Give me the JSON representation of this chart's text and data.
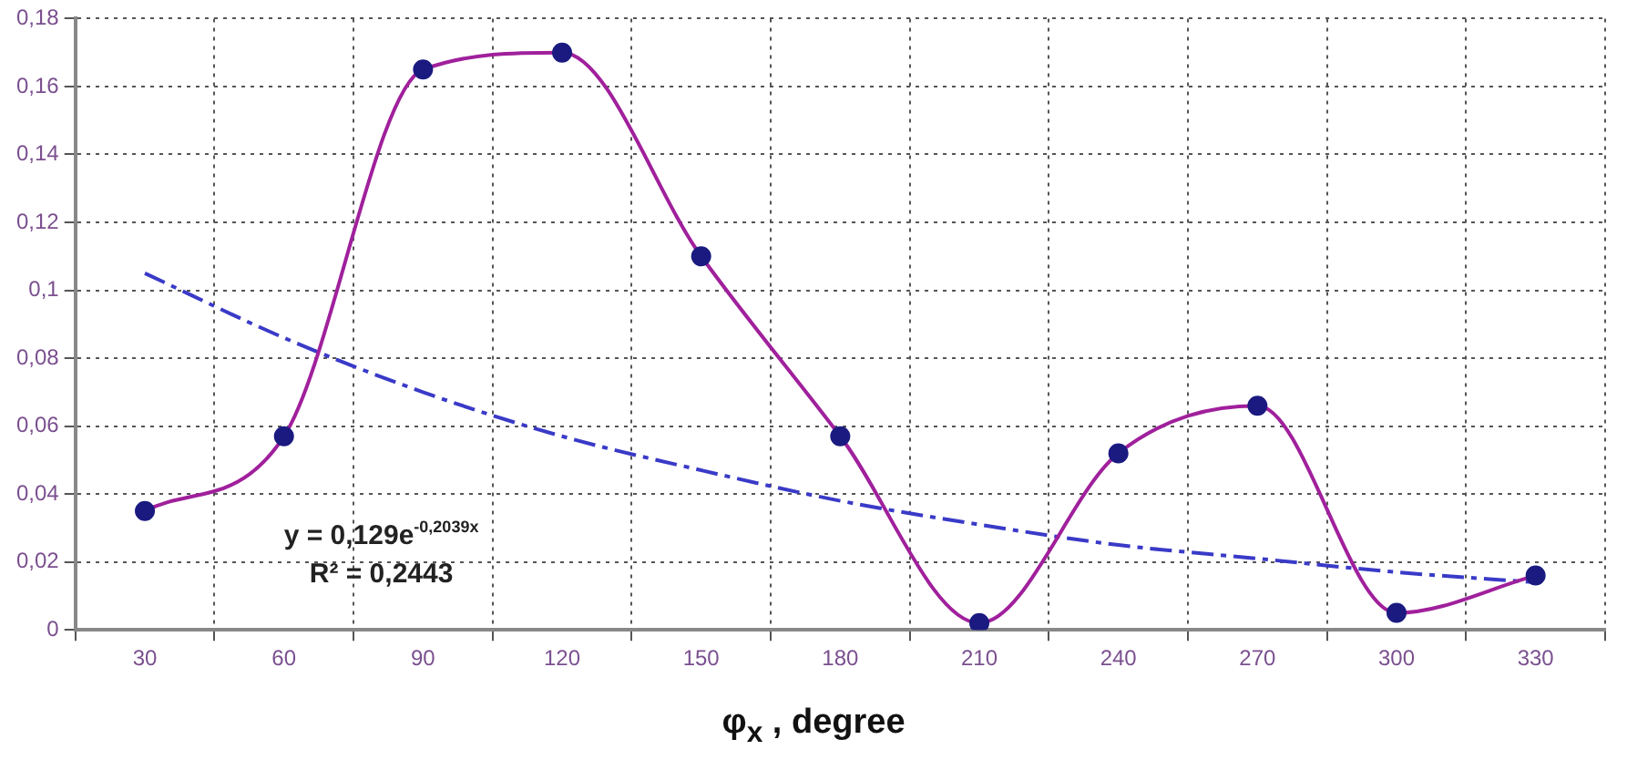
{
  "chart_data": {
    "type": "line",
    "xlabel": "φ$_{x}$ , degree",
    "categories": [
      "30",
      "60",
      "90",
      "120",
      "150",
      "180",
      "210",
      "240",
      "270",
      "300",
      "330"
    ],
    "series": [
      {
        "color": "#a0209c",
        "marker": "circle",
        "values": [
          0.035,
          0.057,
          0.165,
          0.17,
          0.11,
          0.057,
          0.002,
          0.052,
          0.066,
          0.005,
          0.016
        ]
      },
      {
        "color": "#3a3ac8",
        "marker": "none",
        "line_style": "dashed",
        "values": [
          0.105,
          0.086,
          0.07,
          0.057,
          0.047,
          0.038,
          0.031,
          0.025,
          0.021,
          0.017,
          0.014
        ]
      }
    ],
    "ylim": [
      0,
      0.18
    ],
    "yticks": [
      0,
      {
        "value": 0.02,
        "label": "0,02"
      },
      {
        "value": 0.04,
        "label": "0,04"
      },
      {
        "value": 0.06,
        "label": "0,06"
      },
      {
        "value": 0.08,
        "label": "0,08"
      },
      {
        "value": 0.1,
        "label": "0,1"
      },
      {
        "value": 0.12,
        "label": "0,12"
      },
      {
        "value": 0.14,
        "label": "0,14"
      },
      {
        "value": 0.16,
        "label": "0,16"
      },
      {
        "value": 0.18,
        "label": "0,18"
      }
    ],
    "annotations": [
      "y = 0,129e$^{-0,2039x}$",
      "R² = 0,2443"
    ],
    "grid": true,
    "legend": false
  }
}
